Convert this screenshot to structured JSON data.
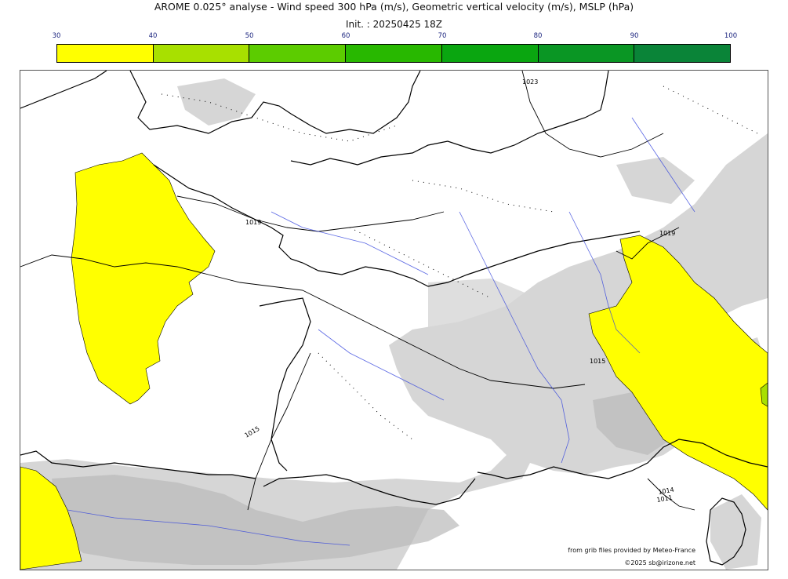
{
  "header": {
    "title": "AROME 0.025° analyse - Wind speed 300 hPa (m/s), Geometric vertical velocity (m/s), MSLP (hPa)",
    "init": "Init. : 20250425 18Z"
  },
  "colorbar": {
    "ticks": [
      "30",
      "40",
      "50",
      "60",
      "70",
      "80",
      "90",
      "100"
    ],
    "colors": [
      "#ffff00",
      "#a8e000",
      "#5ccc00",
      "#28b800",
      "#0aa610",
      "#0a9624",
      "#0a8438",
      "#08744c"
    ]
  },
  "map": {
    "isobar_labels": [
      "1023",
      "1019",
      "1019",
      "1015",
      "1015",
      "1014",
      "1011"
    ],
    "colors": {
      "wind_30_40": "#ffff00",
      "wind_40_50": "#a8e000",
      "vertical_velocity_shade": "#d3d3d3",
      "terrain_shade": "#b8b8b8",
      "coast": "#000000",
      "rivers": "#3344dd"
    }
  },
  "footer": {
    "source": "from grib files provided by Meteo-France",
    "copyright": "©2025 sb@irizone.net"
  }
}
